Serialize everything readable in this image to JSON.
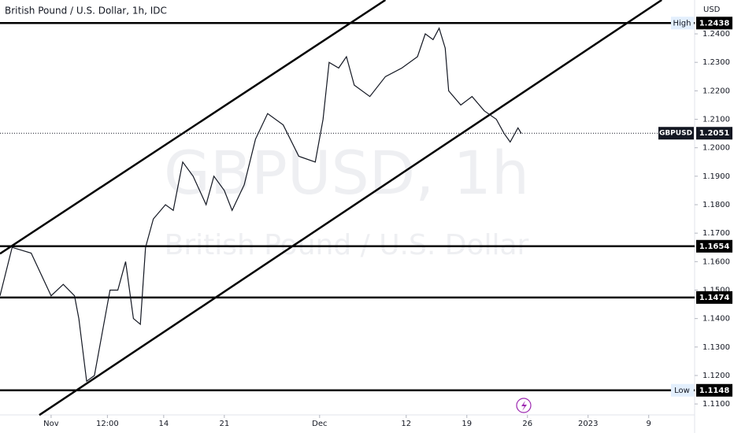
{
  "chart_data": {
    "type": "line",
    "title": "British Pound / U.S. Dollar, 1h, IDC",
    "watermark": [
      "GBPUSD, 1h",
      "British Pound / U.S. Dollar"
    ],
    "currency": "USD",
    "x": [
      -4.9,
      -3.5,
      -1.3,
      1,
      2.4,
      3.7,
      4.2,
      5.1,
      6,
      6.9,
      7.8,
      8.7,
      9.6,
      10.5,
      11.3,
      11.9,
      12.8,
      14.2,
      15.1,
      16.2,
      17.4,
      18.9,
      19.8,
      21,
      21.9,
      23.3,
      24.6,
      26,
      27.8,
      29.6,
      31.5,
      32.4,
      33.1,
      34.2,
      35.1,
      36,
      37.8,
      39.6,
      41.5,
      43.3,
      44.2,
      45.1,
      45.8,
      46.5,
      46.9,
      48.3,
      49.6,
      51,
      52.4,
      53.3,
      54,
      54.9,
      55.3
    ],
    "series": [
      {
        "name": "GBPUSD",
        "color": "#131722",
        "values": [
          1.148,
          1.165,
          1.163,
          1.148,
          1.152,
          1.148,
          1.14,
          1.118,
          1.12,
          1.135,
          1.15,
          1.15,
          1.16,
          1.14,
          1.138,
          1.165,
          1.175,
          1.18,
          1.178,
          1.195,
          1.19,
          1.18,
          1.19,
          1.185,
          1.178,
          1.187,
          1.203,
          1.212,
          1.208,
          1.197,
          1.195,
          1.21,
          1.23,
          1.228,
          1.232,
          1.222,
          1.218,
          1.225,
          1.228,
          1.232,
          1.24,
          1.238,
          1.242,
          1.235,
          1.22,
          1.215,
          1.218,
          1.213,
          1.21,
          1.205,
          1.202,
          1.207,
          1.205
        ]
      }
    ],
    "last_price": {
      "value": 1.2051,
      "label": "1.2051",
      "name": "GBPUSD"
    },
    "hlines": [
      {
        "value": 1.2438,
        "label": "1.2438",
        "tag": "High"
      },
      {
        "value": 1.1654,
        "label": "1.1654"
      },
      {
        "value": 1.1474,
        "label": "1.1474"
      },
      {
        "value": 1.1148,
        "label": "1.1148",
        "tag": "Low"
      }
    ],
    "trendlines": [
      {
        "x": [
          -4.9,
          39.6
        ],
        "y": [
          1.1628,
          1.2519
        ]
      },
      {
        "x": [
          -0.36,
          71.5
        ],
        "y": [
          1.1061,
          1.2519
        ]
      }
    ],
    "xlim": [
      -4.9,
      75.3
    ],
    "ylim": [
      1.0998,
      1.2519
    ],
    "xticks": [
      {
        "value": 1,
        "label": "Nov"
      },
      {
        "value": 7.5,
        "label": "12:00"
      },
      14,
      21,
      {
        "value": 32,
        "label": "Dec"
      },
      {
        "value": 42,
        "label": "12"
      },
      {
        "value": 49,
        "label": "19"
      },
      {
        "value": 56,
        "label": "26"
      },
      {
        "value": 63,
        "label": "2023"
      },
      {
        "value": 70,
        "label": "9"
      }
    ],
    "yticks": [
      {
        "value": 1.11,
        "label": "1.1100"
      },
      {
        "value": 1.12,
        "label": "1.1200"
      },
      {
        "value": 1.13,
        "label": "1.1300"
      },
      {
        "value": 1.14,
        "label": "1.1400"
      },
      {
        "value": 1.15,
        "label": "1.1500"
      },
      {
        "value": 1.16,
        "label": "1.1600"
      },
      {
        "value": 1.17,
        "label": "1.1700"
      },
      {
        "value": 1.18,
        "label": "1.1800"
      },
      {
        "value": 1.19,
        "label": "1.1900"
      },
      {
        "value": 1.2,
        "label": "1.2000"
      },
      {
        "value": 1.21,
        "label": "1.2100"
      },
      {
        "value": 1.22,
        "label": "1.2200"
      },
      {
        "value": 1.23,
        "label": "1.2300"
      },
      {
        "value": 1.24,
        "label": "1.2400"
      }
    ]
  }
}
